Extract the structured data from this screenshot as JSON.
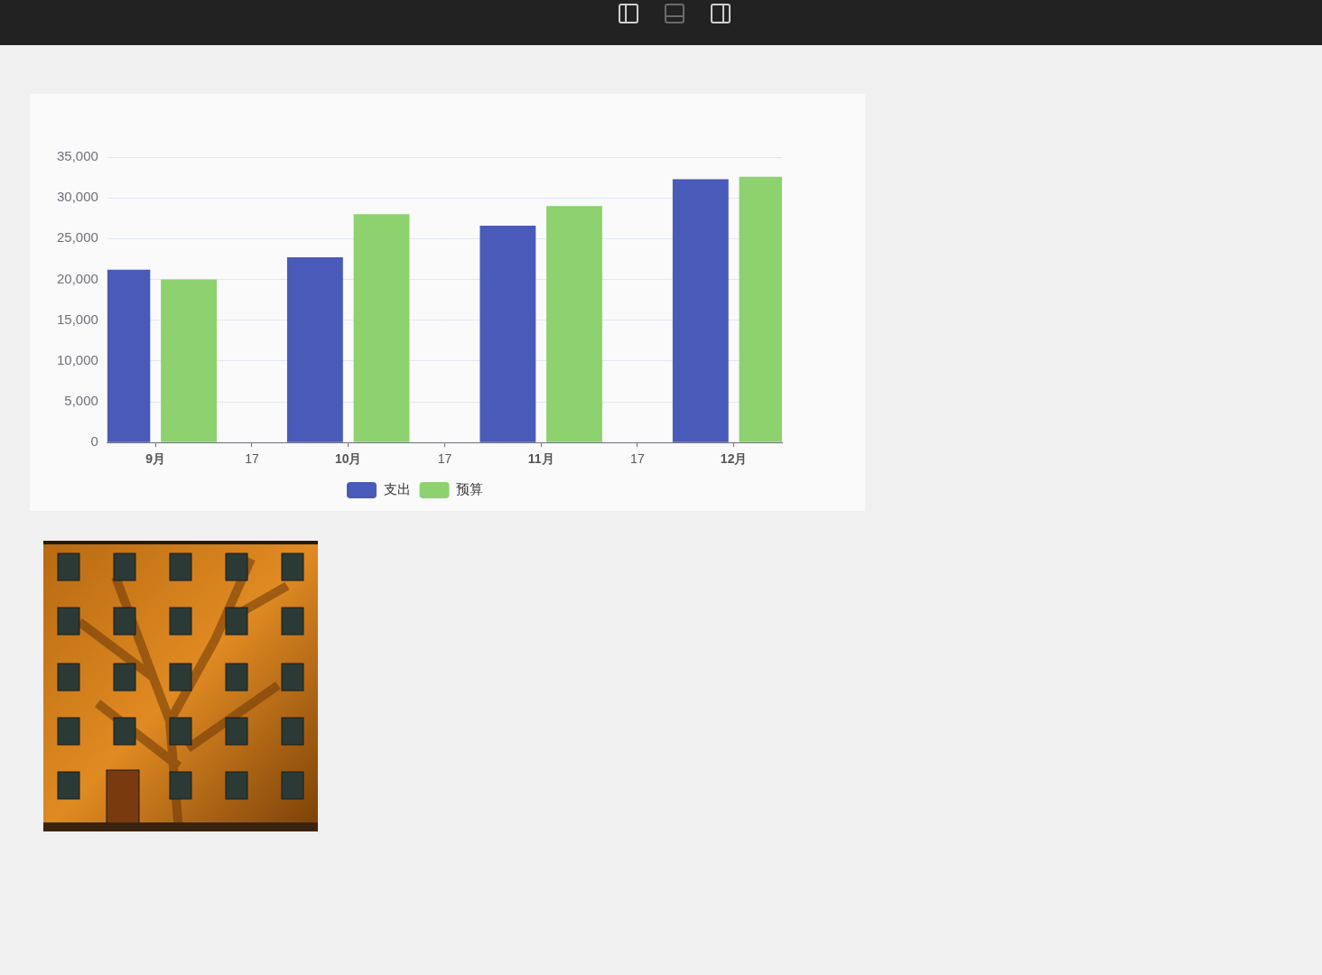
{
  "chart_data": {
    "type": "bar",
    "categories": [
      "9月",
      "17",
      "10月",
      "17",
      "11月",
      "17",
      "12月"
    ],
    "series": [
      {
        "name": "支出",
        "color": "#4a5ab8",
        "values": [
          21200,
          null,
          22700,
          null,
          26600,
          null,
          32300
        ]
      },
      {
        "name": "预算",
        "color": "#8dd26f",
        "values": [
          20000,
          null,
          28000,
          null,
          29000,
          null,
          32600
        ]
      }
    ],
    "ylim": [
      0,
      35000
    ],
    "yticks": [
      0,
      {
        "value": 5000,
        "label": "5,000"
      },
      {
        "value": 10000,
        "label": "10,000"
      },
      {
        "value": 15000,
        "label": "15,000"
      },
      {
        "value": 20000,
        "label": "20,000"
      },
      {
        "value": 25000,
        "label": "25,000"
      },
      {
        "value": 30000,
        "label": "30,000"
      },
      {
        "value": 35000,
        "label": "35,000"
      }
    ],
    "grid": true,
    "legend": "bottom"
  }
}
